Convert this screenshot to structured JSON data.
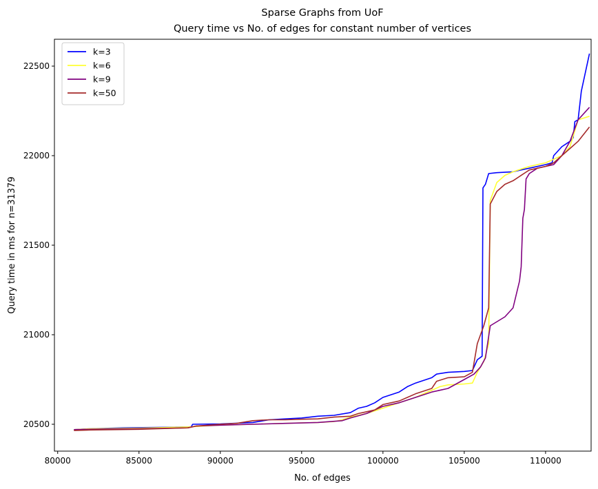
{
  "chart_data": {
    "type": "line",
    "title": "Sparse Graphs from UoF",
    "subtitle": "Query time vs No. of edges for constant number of vertices",
    "xlabel": "No. of edges",
    "ylabel": "Query time in ms for n=31379",
    "xlim": [
      79800,
      112800
    ],
    "ylim": [
      20350,
      22650
    ],
    "xticks": [
      80000,
      85000,
      90000,
      95000,
      100000,
      105000,
      110000
    ],
    "yticks": [
      20500,
      21000,
      21500,
      22000,
      22500
    ],
    "grid": false,
    "legend_position": "top-left",
    "series": [
      {
        "name": "k=3",
        "color": "#0000ff",
        "points": [
          [
            81000,
            20470
          ],
          [
            82000,
            20475
          ],
          [
            84000,
            20480
          ],
          [
            88200,
            20485
          ],
          [
            88300,
            20500
          ],
          [
            90000,
            20502
          ],
          [
            92000,
            20510
          ],
          [
            93000,
            20525
          ],
          [
            94000,
            20530
          ],
          [
            95000,
            20535
          ],
          [
            96000,
            20545
          ],
          [
            97000,
            20550
          ],
          [
            98000,
            20565
          ],
          [
            98500,
            20590
          ],
          [
            99000,
            20600
          ],
          [
            99500,
            20620
          ],
          [
            100000,
            20650
          ],
          [
            101000,
            20680
          ],
          [
            101500,
            20710
          ],
          [
            102000,
            20730
          ],
          [
            103000,
            20760
          ],
          [
            103300,
            20780
          ],
          [
            104000,
            20790
          ],
          [
            105000,
            20795
          ],
          [
            105500,
            20800
          ],
          [
            105800,
            20860
          ],
          [
            106100,
            20880
          ],
          [
            106150,
            21820
          ],
          [
            106300,
            21840
          ],
          [
            106500,
            21900
          ],
          [
            107000,
            21905
          ],
          [
            108000,
            21910
          ],
          [
            109000,
            21930
          ],
          [
            110000,
            21950
          ],
          [
            110400,
            21960
          ],
          [
            110500,
            22000
          ],
          [
            111000,
            22050
          ],
          [
            111500,
            22080
          ],
          [
            111700,
            22100
          ],
          [
            111800,
            22190
          ],
          [
            112000,
            22200
          ],
          [
            112200,
            22360
          ],
          [
            112700,
            22570
          ]
        ]
      },
      {
        "name": "k=6",
        "color": "#ffff33",
        "points": [
          [
            81000,
            20470
          ],
          [
            82000,
            20475
          ],
          [
            85000,
            20478
          ],
          [
            88000,
            20485
          ],
          [
            89000,
            20490
          ],
          [
            90000,
            20495
          ],
          [
            92000,
            20500
          ],
          [
            94000,
            20505
          ],
          [
            95000,
            20508
          ],
          [
            96000,
            20510
          ],
          [
            97000,
            20515
          ],
          [
            97500,
            20525
          ],
          [
            98000,
            20540
          ],
          [
            99000,
            20560
          ],
          [
            100000,
            20590
          ],
          [
            101000,
            20620
          ],
          [
            102000,
            20650
          ],
          [
            103000,
            20690
          ],
          [
            103500,
            20710
          ],
          [
            104000,
            20720
          ],
          [
            105000,
            20725
          ],
          [
            105500,
            20730
          ],
          [
            105800,
            20790
          ],
          [
            106200,
            20850
          ],
          [
            106500,
            20950
          ],
          [
            106600,
            21750
          ],
          [
            107000,
            21850
          ],
          [
            107500,
            21890
          ],
          [
            108000,
            21910
          ],
          [
            109000,
            21940
          ],
          [
            110000,
            21960
          ],
          [
            110500,
            21980
          ],
          [
            111000,
            22000
          ],
          [
            111500,
            22050
          ],
          [
            112000,
            22200
          ],
          [
            112700,
            22220
          ]
        ]
      },
      {
        "name": "k=9",
        "color": "#800080",
        "points": [
          [
            81000,
            20470
          ],
          [
            82000,
            20472
          ],
          [
            85000,
            20475
          ],
          [
            87000,
            20478
          ],
          [
            88000,
            20480
          ],
          [
            88500,
            20490
          ],
          [
            90000,
            20495
          ],
          [
            92000,
            20500
          ],
          [
            94000,
            20505
          ],
          [
            96000,
            20510
          ],
          [
            97500,
            20520
          ],
          [
            98000,
            20535
          ],
          [
            99000,
            20560
          ],
          [
            100000,
            20600
          ],
          [
            101000,
            20620
          ],
          [
            102000,
            20650
          ],
          [
            103000,
            20680
          ],
          [
            104000,
            20700
          ],
          [
            105000,
            20750
          ],
          [
            105600,
            20780
          ],
          [
            106000,
            20820
          ],
          [
            106300,
            20870
          ],
          [
            106600,
            21050
          ],
          [
            107500,
            21100
          ],
          [
            108000,
            21150
          ],
          [
            108400,
            21300
          ],
          [
            108500,
            21380
          ],
          [
            108600,
            21650
          ],
          [
            108700,
            21700
          ],
          [
            108800,
            21870
          ],
          [
            109000,
            21900
          ],
          [
            109500,
            21930
          ],
          [
            110000,
            21940
          ],
          [
            110500,
            21950
          ],
          [
            111000,
            22000
          ],
          [
            111500,
            22080
          ],
          [
            112000,
            22200
          ],
          [
            112700,
            22270
          ]
        ]
      },
      {
        "name": "k=50",
        "color": "#a52a2a",
        "points": [
          [
            81000,
            20465
          ],
          [
            82000,
            20468
          ],
          [
            85000,
            20472
          ],
          [
            88000,
            20480
          ],
          [
            88500,
            20490
          ],
          [
            90000,
            20500
          ],
          [
            91000,
            20505
          ],
          [
            92000,
            20520
          ],
          [
            93000,
            20525
          ],
          [
            94000,
            20525
          ],
          [
            95000,
            20528
          ],
          [
            96000,
            20530
          ],
          [
            97000,
            20540
          ],
          [
            98000,
            20545
          ],
          [
            98500,
            20560
          ],
          [
            99000,
            20570
          ],
          [
            99500,
            20580
          ],
          [
            100000,
            20610
          ],
          [
            101000,
            20630
          ],
          [
            101500,
            20650
          ],
          [
            102000,
            20670
          ],
          [
            103000,
            20700
          ],
          [
            103300,
            20740
          ],
          [
            104000,
            20760
          ],
          [
            105000,
            20765
          ],
          [
            105500,
            20790
          ],
          [
            105800,
            20950
          ],
          [
            106200,
            21050
          ],
          [
            106500,
            21150
          ],
          [
            106600,
            21730
          ],
          [
            107000,
            21800
          ],
          [
            107500,
            21840
          ],
          [
            108000,
            21860
          ],
          [
            108500,
            21890
          ],
          [
            109000,
            21920
          ],
          [
            110000,
            21940
          ],
          [
            110500,
            21960
          ],
          [
            111000,
            22000
          ],
          [
            111500,
            22040
          ],
          [
            112000,
            22080
          ],
          [
            112700,
            22160
          ]
        ]
      }
    ]
  }
}
